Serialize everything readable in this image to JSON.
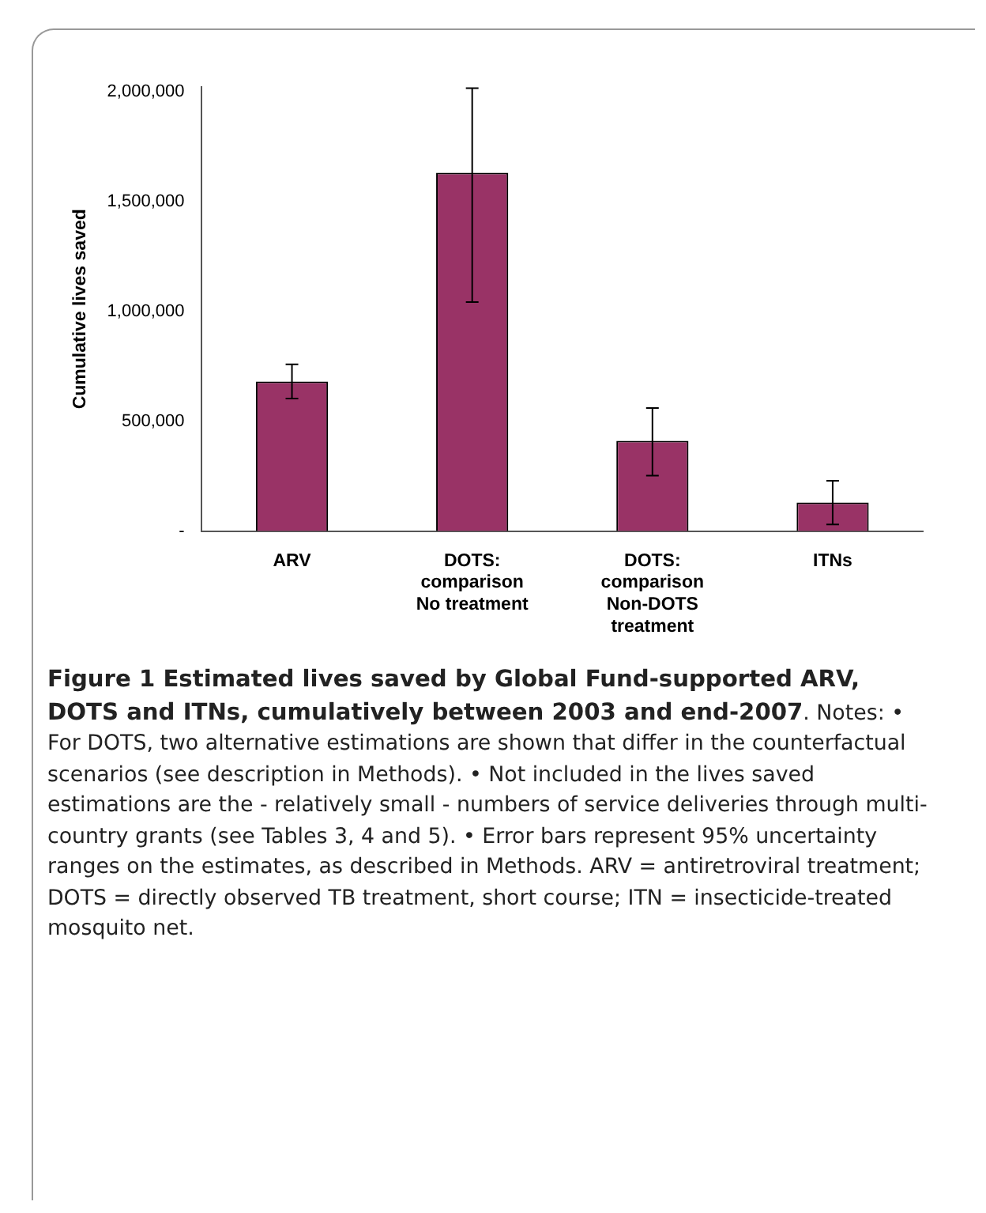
{
  "chart_data": {
    "type": "bar",
    "title": "Figure 1 Estimated lives saved by Global Fund-supported ARV, DOTS and ITNs, cumulatively between 2003 and end-2007",
    "ylabel": "Cumulative lives saved",
    "categories": [
      "ARV",
      "DOTS: comparison No treatment",
      "DOTS: comparison Non-DOTS treatment",
      "ITNs"
    ],
    "values": [
      680000,
      1630000,
      410000,
      130000
    ],
    "errors": [
      [
        603000,
        758000
      ],
      [
        1042000,
        2015000
      ],
      [
        252000,
        560000
      ],
      [
        30000,
        229000
      ]
    ],
    "color": "#993366",
    "ylim": [
      0,
      2020000
    ],
    "yticks": [
      {
        "value": 0,
        "label": "-"
      },
      {
        "value": 500000,
        "label": "500,000"
      },
      {
        "value": 1000000,
        "label": "1,000,000"
      },
      {
        "value": 1500000,
        "label": "1,500,000"
      },
      {
        "value": 2000000,
        "label": "2,000,000"
      }
    ],
    "grid": false,
    "legend": false,
    "annotations": [
      ". Notes: • For DOTS, two alternative estimations are shown that differ in the counterfactual scenarios (see description in Methods). • Not included in the lives saved estimations are the - relatively small - numbers of service deliveries through multi-country grants (see Tables 3, 4 and 5). • Error bars represent 95% uncertainty ranges on the estimates, as described in Methods. ARV = antiretroviral treatment; DOTS = directly observed TB treatment, short course; ITN = insecticide-treated mosquito net."
    ]
  }
}
